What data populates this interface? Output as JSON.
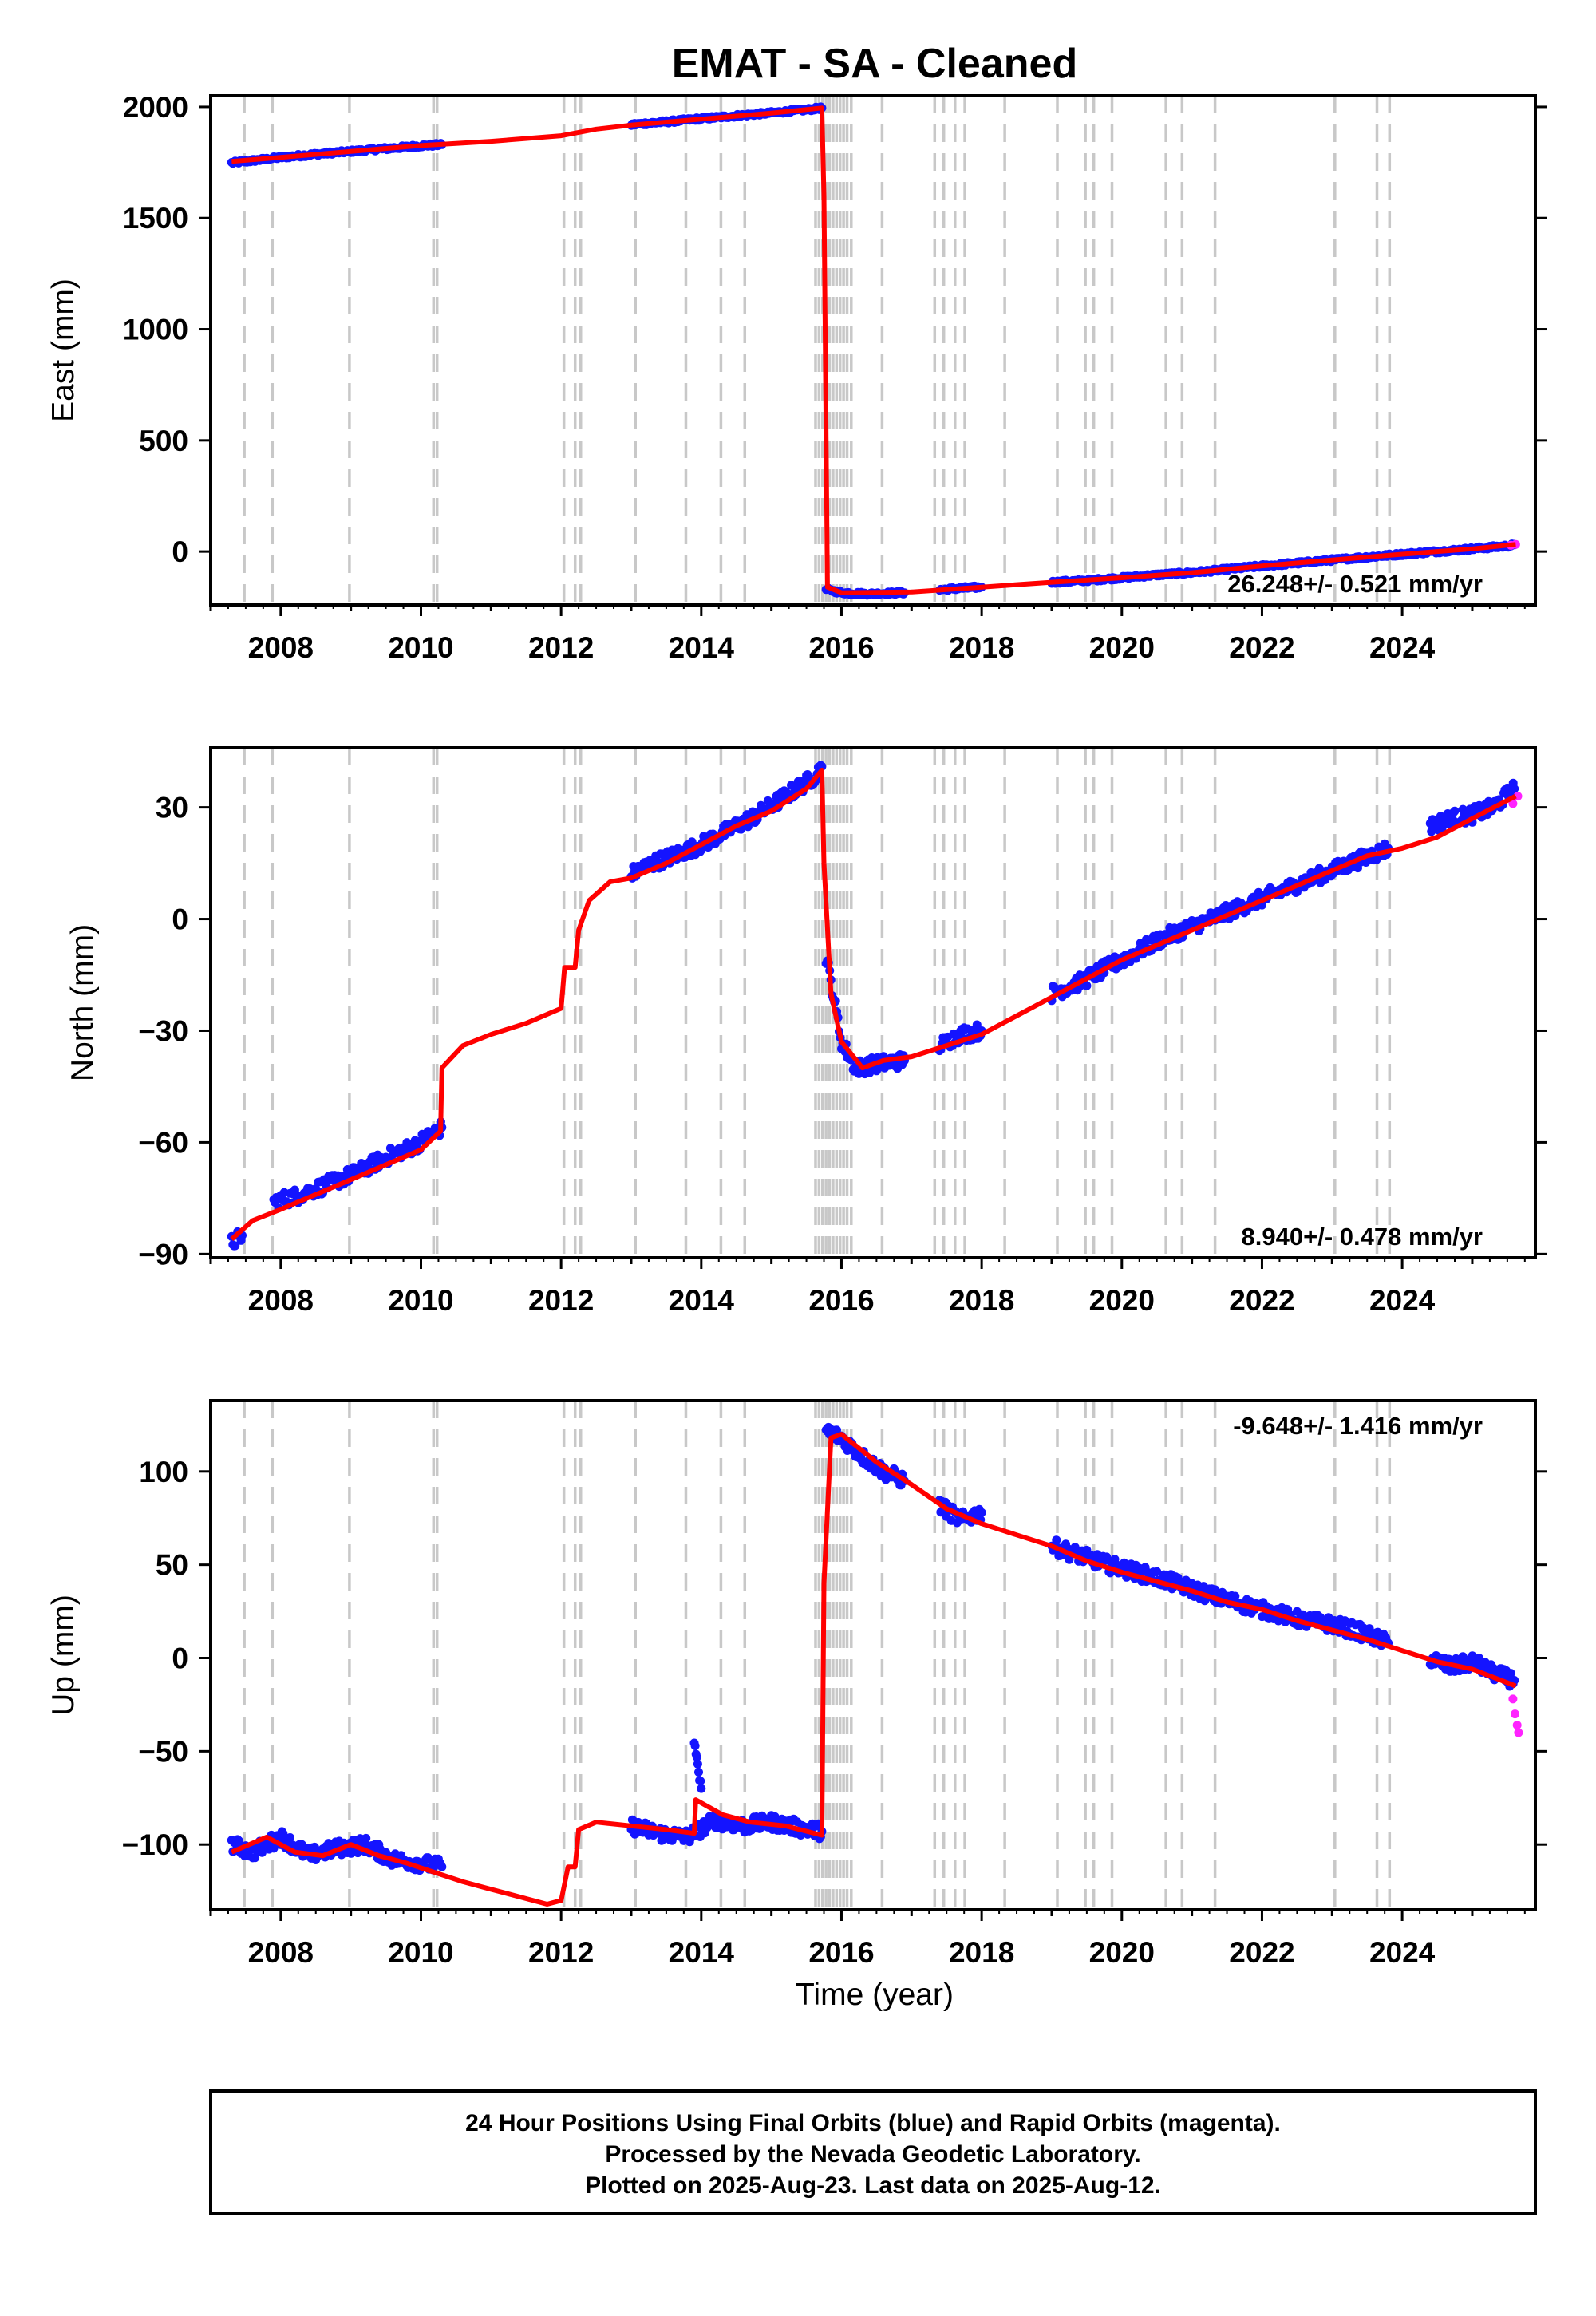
{
  "title": "EMAT  - SA - Cleaned",
  "xlabel": "Time (year)",
  "footer": {
    "line1": "24 Hour Positions Using Final Orbits (blue) and Rapid Orbits (magenta).",
    "line2": "Processed by the Nevada Geodetic Laboratory.",
    "line3": "Plotted on 2025-Aug-23. Last data on 2025-Aug-12."
  },
  "colors": {
    "final": "#1414ff",
    "rapid": "#ff22ff",
    "model": "#ff0000",
    "event": "#c8c8c8",
    "frame": "#000000"
  },
  "chart_data": [
    {
      "type": "scatter",
      "id": "east",
      "ylabel": "East (mm)",
      "xlim": [
        2007.0,
        2025.9
      ],
      "ylim": [
        -240,
        2050
      ],
      "xticks": [
        2008,
        2010,
        2012,
        2014,
        2016,
        2018,
        2020,
        2022,
        2024
      ],
      "yticks": [
        0,
        500,
        1000,
        1500,
        2000
      ],
      "rate": "26.248+/- 0.521 mm/yr",
      "rate_position": "bottom-right",
      "final_segments": [
        {
          "x": [
            2007.3,
            2007.5,
            2007.8,
            2008.0,
            2008.5,
            2009.0,
            2009.5,
            2010.0,
            2010.3
          ],
          "y": [
            1748,
            1755,
            1765,
            1773,
            1787,
            1800,
            1812,
            1825,
            1830
          ]
        },
        {
          "x": [
            2013.0,
            2013.5,
            2014.0,
            2014.5,
            2015.0,
            2015.5,
            2015.72
          ],
          "y": [
            1920,
            1933,
            1947,
            1960,
            1973,
            1987,
            1995
          ]
        },
        {
          "x": [
            2015.78,
            2016.0,
            2016.4,
            2016.9
          ],
          "y": [
            -170,
            -185,
            -190,
            -185
          ]
        },
        {
          "x": [
            2017.4,
            2017.7,
            2018.0
          ],
          "y": [
            -172,
            -165,
            -160
          ]
        },
        {
          "x": [
            2019.0,
            2019.5,
            2020.0,
            2020.5,
            2021.0,
            2021.5,
            2022.0,
            2022.5,
            2023.0,
            2023.5,
            2024.0,
            2024.5,
            2025.0,
            2025.5,
            2025.6
          ],
          "y": [
            -138,
            -130,
            -118,
            -105,
            -95,
            -80,
            -65,
            -52,
            -38,
            -25,
            -12,
            0,
            12,
            25,
            30
          ]
        }
      ],
      "rapid_segments": [
        {
          "x": [
            2025.55,
            2025.62
          ],
          "y": [
            28,
            32
          ]
        }
      ],
      "model": {
        "x": [
          2007.3,
          2008.0,
          2009.0,
          2010.0,
          2011.0,
          2012.0,
          2012.5,
          2013.0,
          2014.0,
          2015.0,
          2015.72,
          2015.75,
          2015.8,
          2016.0,
          2017.0,
          2018.0,
          2019.0,
          2020.0,
          2021.0,
          2022.0,
          2023.0,
          2024.0,
          2025.0,
          2025.62
        ],
        "y": [
          1755,
          1773,
          1800,
          1826,
          1845,
          1870,
          1900,
          1918,
          1945,
          1972,
          1995,
          1600,
          -160,
          -185,
          -182,
          -160,
          -138,
          -118,
          -95,
          -65,
          -38,
          -12,
          12,
          32
        ]
      }
    },
    {
      "type": "scatter",
      "id": "north",
      "ylabel": "North (mm)",
      "xlim": [
        2007.0,
        2025.9
      ],
      "ylim": [
        -91,
        46
      ],
      "xticks": [
        2008,
        2010,
        2012,
        2014,
        2016,
        2018,
        2020,
        2022,
        2024
      ],
      "yticks": [
        -90,
        -60,
        -30,
        0,
        30
      ],
      "rate": "8.940+/- 0.478 mm/yr",
      "rate_position": "bottom-right",
      "final_segments": [
        {
          "x": [
            2007.3,
            2007.45
          ],
          "y": [
            -87,
            -85
          ]
        },
        {
          "x": [
            2007.9,
            2008.3,
            2008.7,
            2009.1,
            2009.5,
            2009.9,
            2010.3
          ],
          "y": [
            -76,
            -74,
            -71,
            -68,
            -64,
            -61,
            -56
          ]
        },
        {
          "x": [
            2013.0,
            2013.3,
            2013.6,
            2014.0,
            2014.4,
            2014.8,
            2015.2,
            2015.6,
            2015.72
          ],
          "y": [
            12,
            15,
            17,
            20,
            24,
            28,
            33,
            38,
            41
          ]
        },
        {
          "x": [
            2015.78,
            2015.9,
            2016.0,
            2016.2,
            2016.5,
            2016.9
          ],
          "y": [
            -10,
            -22,
            -33,
            -40,
            -39,
            -38
          ]
        },
        {
          "x": [
            2017.4,
            2017.7,
            2018.0
          ],
          "y": [
            -34,
            -31,
            -30
          ]
        },
        {
          "x": [
            2019.0,
            2019.4,
            2019.8,
            2020.2,
            2020.6,
            2021.0,
            2021.4,
            2021.8,
            2022.2,
            2022.6,
            2023.0,
            2023.4,
            2023.8
          ],
          "y": [
            -20,
            -17,
            -13,
            -9,
            -5,
            -2,
            1,
            4,
            7,
            10,
            13,
            16,
            19
          ]
        },
        {
          "x": [
            2024.4,
            2024.7,
            2025.0,
            2025.3,
            2025.6
          ],
          "y": [
            25,
            27,
            28,
            30,
            35
          ]
        }
      ],
      "rapid_segments": [
        {
          "x": [
            2025.58,
            2025.65
          ],
          "y": [
            31,
            33
          ]
        }
      ],
      "model": {
        "x": [
          2007.3,
          2007.6,
          2008.0,
          2008.5,
          2009.0,
          2009.5,
          2010.0,
          2010.28,
          2010.3,
          2010.6,
          2011.0,
          2011.5,
          2012.0,
          2012.05,
          2012.2,
          2012.25,
          2012.4,
          2012.7,
          2013.0,
          2013.5,
          2014.0,
          2014.5,
          2015.0,
          2015.5,
          2015.72,
          2015.75,
          2015.85,
          2016.0,
          2016.3,
          2016.6,
          2017.0,
          2017.5,
          2018.0,
          2018.5,
          2019.0,
          2019.5,
          2020.0,
          2020.5,
          2021.0,
          2021.5,
          2022.0,
          2022.5,
          2023.0,
          2023.5,
          2024.0,
          2024.5,
          2025.0,
          2025.62
        ],
        "y": [
          -86,
          -81,
          -78,
          -74,
          -70,
          -66,
          -62,
          -57,
          -40,
          -34,
          -31,
          -28,
          -24,
          -13,
          -13,
          -3,
          5,
          10,
          11,
          15,
          20,
          25,
          29,
          35,
          40,
          15,
          -20,
          -33,
          -40,
          -38,
          -37,
          -34,
          -31,
          -26,
          -21,
          -16,
          -11,
          -7,
          -3,
          1,
          5,
          9,
          13,
          17,
          19,
          22,
          27,
          33
        ]
      }
    },
    {
      "type": "scatter",
      "id": "up",
      "ylabel": "Up (mm)",
      "xlim": [
        2007.0,
        2025.9
      ],
      "ylim": [
        -135,
        138
      ],
      "xticks": [
        2008,
        2010,
        2012,
        2014,
        2016,
        2018,
        2020,
        2022,
        2024
      ],
      "yticks": [
        -100,
        -50,
        0,
        50,
        100
      ],
      "rate": "-9.648+/- 1.416 mm/yr",
      "rate_position": "top-right",
      "final_segments": [
        {
          "x": [
            2007.3,
            2007.6,
            2008.0,
            2008.4,
            2008.8,
            2009.2,
            2009.6,
            2010.0,
            2010.3
          ],
          "y": [
            -100,
            -104,
            -96,
            -106,
            -102,
            -100,
            -108,
            -110,
            -112
          ]
        },
        {
          "x": [
            2013.0,
            2013.4,
            2013.8,
            2014.2,
            2014.6,
            2015.0,
            2015.4,
            2015.72
          ],
          "y": [
            -90,
            -94,
            -96,
            -87,
            -90,
            -88,
            -91,
            -93
          ]
        },
        {
          "x": [
            2013.9,
            2013.95,
            2014.0
          ],
          "y": [
            -45,
            -60,
            -70
          ]
        },
        {
          "x": [
            2015.78,
            2016.0,
            2016.3,
            2016.6,
            2016.9
          ],
          "y": [
            122,
            118,
            108,
            100,
            95
          ]
        },
        {
          "x": [
            2017.4,
            2017.7,
            2018.0
          ],
          "y": [
            82,
            74,
            78
          ]
        },
        {
          "x": [
            2019.0,
            2019.4,
            2019.8,
            2020.2,
            2020.6,
            2021.0,
            2021.4,
            2021.8,
            2022.2,
            2022.6,
            2023.0,
            2023.4,
            2023.8
          ],
          "y": [
            60,
            55,
            50,
            46,
            42,
            37,
            32,
            28,
            24,
            20,
            18,
            14,
            8
          ]
        },
        {
          "x": [
            2024.4,
            2024.7,
            2025.0,
            2025.3,
            2025.6
          ],
          "y": [
            0,
            -5,
            -2,
            -8,
            -12
          ]
        }
      ],
      "rapid_segments": [
        {
          "x": [
            2025.58,
            2025.61,
            2025.64,
            2025.66
          ],
          "y": [
            -22,
            -30,
            -36,
            -40
          ]
        }
      ],
      "model": {
        "x": [
          2007.3,
          2007.8,
          2008.2,
          2008.6,
          2009.0,
          2009.4,
          2009.8,
          2010.2,
          2010.6,
          2011.0,
          2011.4,
          2011.8,
          2012.0,
          2012.1,
          2012.2,
          2012.25,
          2012.5,
          2013.0,
          2013.5,
          2013.9,
          2013.92,
          2014.3,
          2014.7,
          2015.2,
          2015.72,
          2015.75,
          2015.85,
          2016.0,
          2016.5,
          2017.0,
          2017.5,
          2018.0,
          2018.5,
          2019.0,
          2019.5,
          2020.0,
          2020.5,
          2021.0,
          2021.5,
          2022.0,
          2022.5,
          2023.0,
          2023.5,
          2024.0,
          2024.5,
          2025.0,
          2025.62
        ],
        "y": [
          -104,
          -96,
          -104,
          -106,
          -100,
          -106,
          -110,
          -115,
          -120,
          -124,
          -128,
          -132,
          -130,
          -112,
          -112,
          -92,
          -88,
          -90,
          -92,
          -94,
          -76,
          -84,
          -88,
          -90,
          -95,
          40,
          118,
          120,
          105,
          93,
          80,
          72,
          66,
          60,
          52,
          46,
          41,
          36,
          30,
          26,
          20,
          15,
          10,
          4,
          -2,
          -6,
          -15
        ]
      }
    }
  ],
  "event_lines": [
    2007.48,
    2007.88,
    2008.98,
    2010.18,
    2010.23,
    2012.04,
    2012.2,
    2012.28,
    2013.06,
    2013.78,
    2014.28,
    2014.62,
    2015.63,
    2015.68,
    2015.73,
    2015.78,
    2015.83,
    2015.88,
    2015.93,
    2015.98,
    2016.03,
    2016.08,
    2016.14,
    2016.58,
    2017.33,
    2017.46,
    2017.62,
    2017.76,
    2018.33,
    2019.08,
    2019.48,
    2019.6,
    2019.86,
    2020.63,
    2020.86,
    2021.33,
    2023.04,
    2023.64,
    2023.82
  ]
}
